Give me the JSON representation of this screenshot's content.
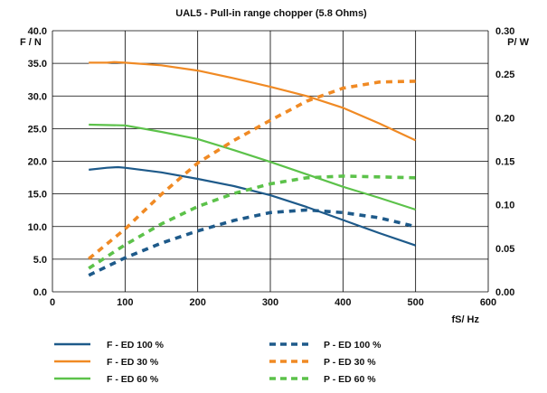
{
  "chart_data": {
    "type": "line",
    "title": "UAL5 - Pull-in range chopper (5.8 Ohms)",
    "xlabel": "fS/ Hz",
    "ylabel_left": "F / N",
    "ylabel_right": "P/ W",
    "xlim": [
      0,
      600
    ],
    "ylim_left": [
      0,
      40
    ],
    "ylim_right": [
      0,
      0.3
    ],
    "x_ticks": [
      "0",
      "100",
      "200",
      "300",
      "400",
      "500",
      "600"
    ],
    "y_left_ticks": [
      "0.0",
      "5.0",
      "10.0",
      "15.0",
      "20.0",
      "25.0",
      "30.0",
      "35.0",
      "40.0"
    ],
    "y_right_ticks": [
      "0.00",
      "0.05",
      "0.10",
      "0.15",
      "0.20",
      "0.25",
      "0.30"
    ],
    "grid": true,
    "legend_position": "bottom",
    "colors": {
      "blue": "#1e5a8a",
      "orange": "#f08a24",
      "green": "#5cc24a"
    },
    "series": [
      {
        "name": "F - ED 100 %",
        "axis": "left",
        "style": "solid",
        "color": "#1e5a8a",
        "x": [
          50,
          75,
          90,
          100,
          150,
          200,
          250,
          300,
          350,
          400,
          450,
          500
        ],
        "y": [
          18.7,
          19.0,
          19.1,
          19.0,
          18.3,
          17.3,
          16.2,
          14.8,
          13.0,
          11.0,
          9.0,
          7.1
        ]
      },
      {
        "name": "F - ED 30 %",
        "axis": "left",
        "style": "solid",
        "color": "#f08a24",
        "x": [
          50,
          75,
          85,
          100,
          150,
          200,
          250,
          300,
          350,
          400,
          450,
          500
        ],
        "y": [
          35.1,
          35.1,
          35.2,
          35.1,
          34.7,
          33.9,
          32.7,
          31.4,
          30.0,
          28.2,
          25.8,
          23.2
        ]
      },
      {
        "name": "F - ED 60 %",
        "axis": "left",
        "style": "solid",
        "color": "#5cc24a",
        "x": [
          50,
          100,
          150,
          200,
          250,
          300,
          350,
          400,
          450,
          500
        ],
        "y": [
          25.6,
          25.5,
          24.5,
          23.4,
          21.7,
          19.9,
          18.0,
          16.1,
          14.4,
          12.6
        ]
      },
      {
        "name": "P - ED 100 %",
        "axis": "right",
        "style": "dashed",
        "color": "#1e5a8a",
        "x": [
          50,
          100,
          150,
          200,
          250,
          300,
          350,
          400,
          450,
          500
        ],
        "y": [
          0.019,
          0.039,
          0.056,
          0.07,
          0.082,
          0.091,
          0.094,
          0.091,
          0.085,
          0.075
        ]
      },
      {
        "name": "P - ED 30 %",
        "axis": "right",
        "style": "dashed",
        "color": "#f08a24",
        "x": [
          50,
          100,
          150,
          200,
          250,
          300,
          350,
          400,
          450,
          500
        ],
        "y": [
          0.038,
          0.072,
          0.112,
          0.148,
          0.174,
          0.197,
          0.219,
          0.234,
          0.241,
          0.242
        ]
      },
      {
        "name": "P - ED 60 %",
        "axis": "right",
        "style": "dashed",
        "color": "#5cc24a",
        "x": [
          50,
          100,
          150,
          200,
          250,
          300,
          350,
          400,
          450,
          500
        ],
        "y": [
          0.027,
          0.054,
          0.078,
          0.098,
          0.113,
          0.124,
          0.131,
          0.133,
          0.132,
          0.131
        ]
      }
    ],
    "legend": {
      "left_column": [
        "F - ED 100 %",
        "F - ED 30 %",
        "F - ED 60 %"
      ],
      "right_column": [
        "P - ED 100 %",
        "P - ED 30 %",
        "P - ED 60 %"
      ]
    }
  }
}
